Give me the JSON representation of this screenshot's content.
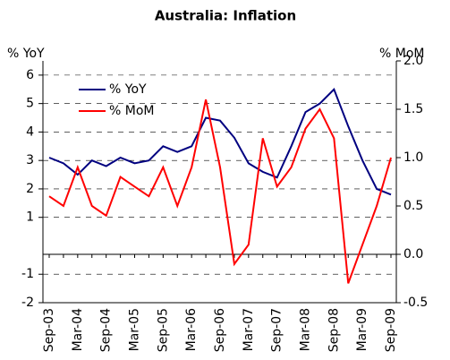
{
  "chart_data": {
    "type": "line",
    "title": "Australia: Inflation",
    "y_label": "% YoY",
    "y2_label": "% MoM",
    "categories": [
      "Sep-03",
      null,
      "Mar-04",
      null,
      "Sep-04",
      null,
      "Mar-05",
      null,
      "Sep-05",
      null,
      "Mar-06",
      null,
      "Sep-06",
      null,
      "Mar-07",
      null,
      "Sep-07",
      null,
      "Mar-08",
      null,
      "Sep-08",
      null,
      "Mar-09",
      null,
      "Sep-09"
    ],
    "series": [
      {
        "name": "% YoY",
        "color": "#000080",
        "axis": "y",
        "values": [
          3.1,
          2.9,
          2.5,
          3.0,
          2.8,
          3.1,
          2.9,
          3.0,
          3.5,
          3.3,
          3.5,
          4.5,
          4.4,
          3.8,
          2.9,
          2.6,
          2.4,
          3.5,
          4.7,
          5.0,
          5.5,
          4.2,
          3.0,
          2.0,
          1.8
        ]
      },
      {
        "name": "% MoM",
        "color": "#ff0000",
        "axis": "y2",
        "values": [
          0.6,
          0.5,
          0.9,
          0.5,
          0.4,
          0.8,
          0.7,
          0.6,
          0.9,
          0.5,
          0.9,
          1.6,
          0.9,
          -0.1,
          0.1,
          1.2,
          0.7,
          0.9,
          1.3,
          1.5,
          1.2,
          -0.3,
          0.1,
          0.5,
          1.0
        ]
      }
    ],
    "ylim": [
      -2,
      6.5
    ],
    "yticks": [
      6,
      5,
      4,
      3,
      2,
      1,
      -1,
      -2
    ],
    "y2lim": [
      -0.5,
      2.0
    ],
    "y2ticks": [
      {
        "value": 2,
        "label": "2.0"
      },
      1.5,
      {
        "value": 1,
        "label": "1.0"
      },
      0.5,
      {
        "value": 0,
        "label": "0.0"
      },
      -0.5
    ],
    "grid": true,
    "legend": "upper left"
  }
}
